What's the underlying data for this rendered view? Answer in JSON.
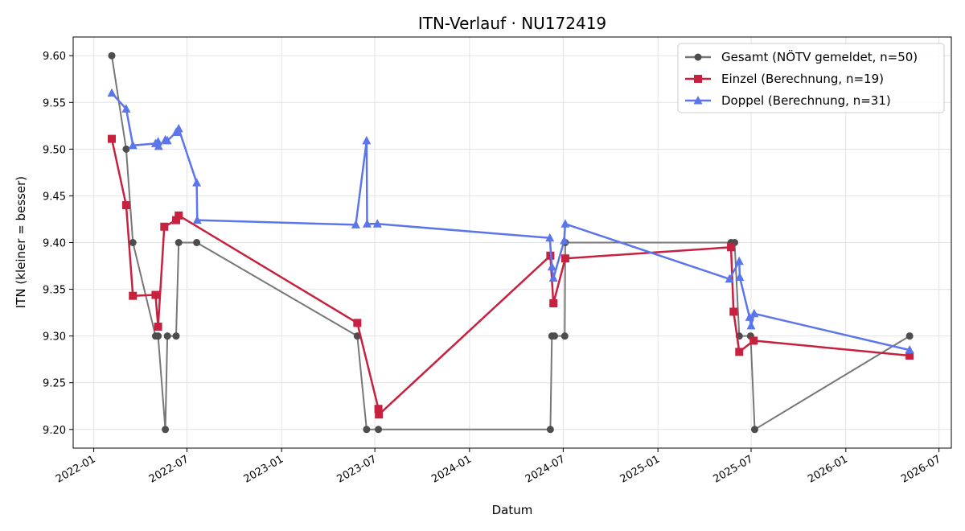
{
  "chart_data": {
    "type": "line",
    "title": "ITN-Verlauf · NU172419",
    "xlabel": "Datum",
    "ylabel": "ITN  (kleiner = besser)",
    "x_ticks": [
      "2022-01",
      "2022-07",
      "2023-01",
      "2023-07",
      "2024-01",
      "2024-07",
      "2025-01",
      "2025-07",
      "2026-01",
      "2026-07"
    ],
    "y_ticks": [
      "9.20",
      "9.25",
      "9.30",
      "9.35",
      "9.40",
      "9.45",
      "9.50",
      "9.55",
      "9.60"
    ],
    "ylim": [
      9.18,
      9.62
    ],
    "xlim": [
      "2021-11-22",
      "2026-07-25"
    ],
    "grid": true,
    "legend_position": "top-right",
    "series": [
      {
        "name": "Gesamt (NÖTV gemeldet, n=50)",
        "color": "#4d4d4d",
        "marker": "circle",
        "points": [
          [
            "2022-02-05",
            9.6
          ],
          [
            "2022-03-05",
            9.5
          ],
          [
            "2022-03-18",
            9.4
          ],
          [
            "2022-05-01",
            9.3
          ],
          [
            "2022-05-06",
            9.3
          ],
          [
            "2022-05-20",
            9.2
          ],
          [
            "2022-05-24",
            9.3
          ],
          [
            "2022-06-10",
            9.3
          ],
          [
            "2022-06-15",
            9.4
          ],
          [
            "2022-07-20",
            9.4
          ],
          [
            "2023-05-28",
            9.3
          ],
          [
            "2023-06-15",
            9.2
          ],
          [
            "2023-07-08",
            9.2
          ],
          [
            "2024-06-06",
            9.2
          ],
          [
            "2024-06-09",
            9.3
          ],
          [
            "2024-06-14",
            9.3
          ],
          [
            "2024-07-04",
            9.3
          ],
          [
            "2024-07-05",
            9.4
          ],
          [
            "2025-05-23",
            9.4
          ],
          [
            "2025-05-30",
            9.4
          ],
          [
            "2025-06-08",
            9.3
          ],
          [
            "2025-06-30",
            9.3
          ],
          [
            "2025-07-08",
            9.2
          ],
          [
            "2026-05-05",
            9.3
          ]
        ]
      },
      {
        "name": "Einzel (Berechnung, n=19)",
        "color": "#c8203f",
        "marker": "square",
        "points": [
          [
            "2022-02-05",
            9.511
          ],
          [
            "2022-03-05",
            9.44
          ],
          [
            "2022-03-18",
            9.343
          ],
          [
            "2022-05-01",
            9.344
          ],
          [
            "2022-05-06",
            9.31
          ],
          [
            "2022-05-18",
            9.417
          ],
          [
            "2022-06-10",
            9.424
          ],
          [
            "2022-06-15",
            9.429
          ],
          [
            "2023-05-28",
            9.314
          ],
          [
            "2023-07-08",
            9.222
          ],
          [
            "2023-07-09",
            9.216
          ],
          [
            "2024-06-06",
            9.386
          ],
          [
            "2024-06-12",
            9.335
          ],
          [
            "2024-07-05",
            9.383
          ],
          [
            "2025-05-23",
            9.395
          ],
          [
            "2025-05-28",
            9.326
          ],
          [
            "2025-06-08",
            9.283
          ],
          [
            "2025-07-06",
            9.295
          ],
          [
            "2026-05-05",
            9.279
          ]
        ]
      },
      {
        "name": "Doppel (Berechnung, n=31)",
        "color": "#5b76ea",
        "marker": "triangle",
        "points": [
          [
            "2022-02-05",
            9.56
          ],
          [
            "2022-03-05",
            9.543
          ],
          [
            "2022-03-18",
            9.504
          ],
          [
            "2022-05-01",
            9.506
          ],
          [
            "2022-05-06",
            9.508
          ],
          [
            "2022-05-07",
            9.503
          ],
          [
            "2022-05-20",
            9.51
          ],
          [
            "2022-05-24",
            9.509
          ],
          [
            "2022-06-10",
            9.518
          ],
          [
            "2022-06-15",
            9.522
          ],
          [
            "2022-07-20",
            9.464
          ],
          [
            "2022-07-21",
            9.424
          ],
          [
            "2023-05-25",
            9.419
          ],
          [
            "2023-06-15",
            9.509
          ],
          [
            "2023-06-16",
            9.42
          ],
          [
            "2023-07-06",
            9.42
          ],
          [
            "2024-06-05",
            9.405
          ],
          [
            "2024-06-09",
            9.374
          ],
          [
            "2024-06-12",
            9.362
          ],
          [
            "2024-07-03",
            9.402
          ],
          [
            "2024-07-05",
            9.42
          ],
          [
            "2025-05-20",
            9.361
          ],
          [
            "2025-06-08",
            9.38
          ],
          [
            "2025-06-09",
            9.363
          ],
          [
            "2025-06-28",
            9.32
          ],
          [
            "2025-07-01",
            9.311
          ],
          [
            "2025-07-07",
            9.324
          ],
          [
            "2026-05-05",
            9.285
          ]
        ]
      }
    ]
  }
}
